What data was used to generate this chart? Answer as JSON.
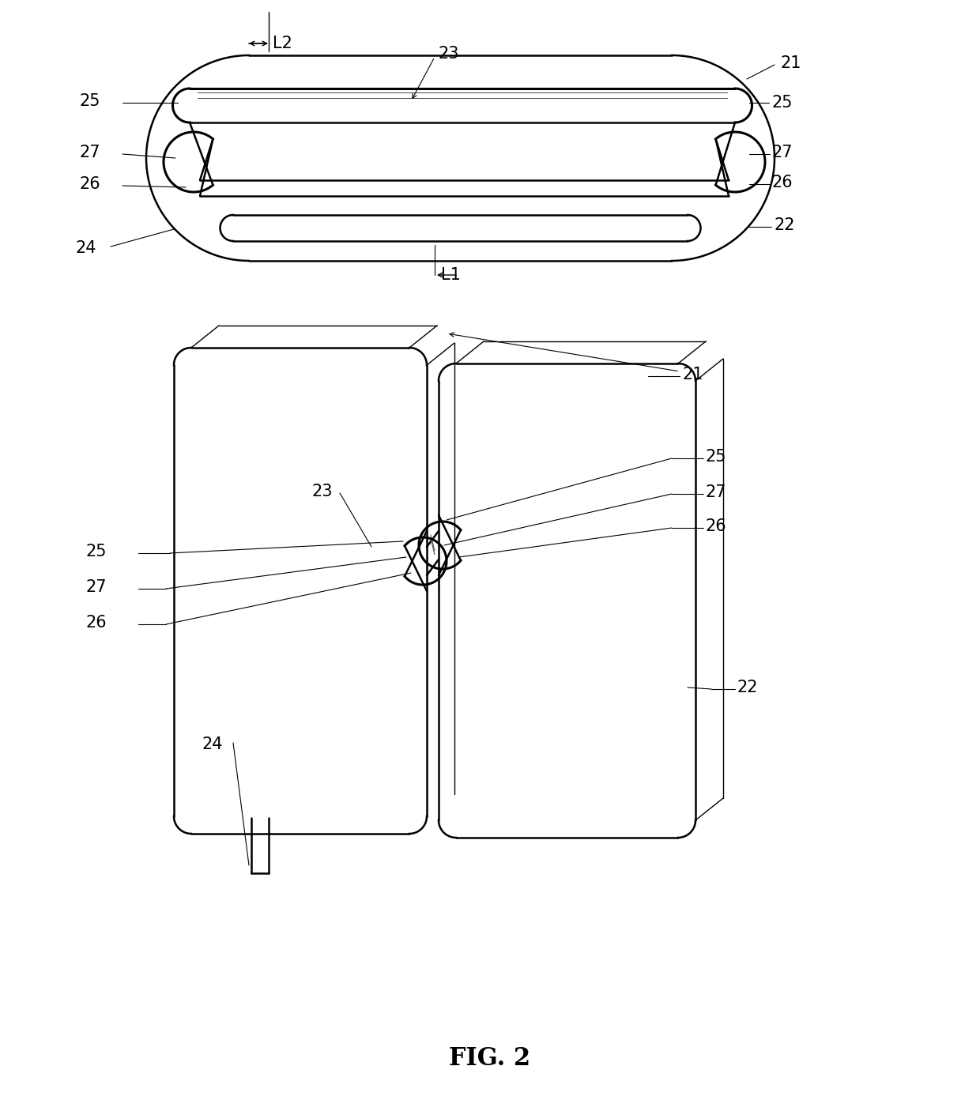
{
  "title": "FIG. 2",
  "bg_color": "#ffffff",
  "line_color": "#000000",
  "label_color": "#000000",
  "fig_width": 12.4,
  "fig_height": 14.11
}
